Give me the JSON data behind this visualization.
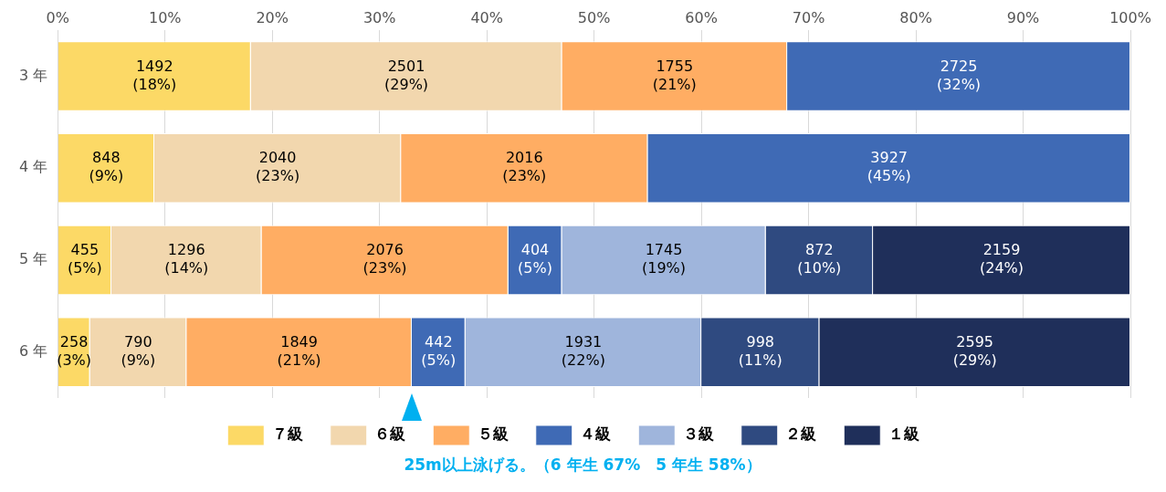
{
  "chart_data": {
    "type": "bar",
    "orientation": "horizontal",
    "stacked": true,
    "categories": [
      "3 年",
      "4 年",
      "5 年",
      "6 年"
    ],
    "series": [
      {
        "name": "７級",
        "color": "#fcd966",
        "values": [
          18,
          9,
          5,
          3
        ],
        "value_labels": [
          "1492\n(18%)",
          "848\n(9%)",
          "455\n(5%)",
          "258\n(3%)"
        ]
      },
      {
        "name": "６級",
        "color": "#f2d7ae",
        "values": [
          29,
          23,
          14,
          9
        ],
        "value_labels": [
          "2501\n(29%)",
          "2040\n(23%)",
          "1296\n(14%)",
          "790\n(9%)"
        ]
      },
      {
        "name": "５級",
        "color": "#ffad63",
        "values": [
          21,
          23,
          23,
          21
        ],
        "value_labels": [
          "1755\n(21%)",
          "2016\n(23%)",
          "2076\n(23%)",
          "1849\n(21%)"
        ]
      },
      {
        "name": "４級",
        "color": "#3f6ab5",
        "values": [
          32,
          45,
          5,
          5
        ],
        "value_labels": [
          "2725\n(32%)",
          "3927\n(45%)",
          "404\n(5%)",
          "442\n(5%)"
        ]
      },
      {
        "name": "３級",
        "color": "#9fb5dc",
        "values": [
          null,
          null,
          19,
          22
        ],
        "value_labels": [
          null,
          null,
          "1745\n(19%)",
          "1931\n(22%)"
        ]
      },
      {
        "name": "２級",
        "color": "#2f4a80",
        "values": [
          null,
          null,
          10,
          11
        ],
        "value_labels": [
          null,
          null,
          "872\n(10%)",
          "998\n(11%)"
        ]
      },
      {
        "name": "１級",
        "color": "#1f2f5a",
        "values": [
          null,
          null,
          24,
          29
        ],
        "value_labels": [
          null,
          null,
          "2159\n(24%)",
          "2595\n(29%)"
        ]
      }
    ],
    "xlim": [
      0,
      100
    ],
    "xticks": [
      {
        "value": 0,
        "label": "0%"
      },
      {
        "value": 10,
        "label": "10%"
      },
      {
        "value": 20,
        "label": "20%"
      },
      {
        "value": 30,
        "label": "30%"
      },
      {
        "value": 40,
        "label": "40%"
      },
      {
        "value": 50,
        "label": "50%"
      },
      {
        "value": 60,
        "label": "60%"
      },
      {
        "value": 70,
        "label": "70%"
      },
      {
        "value": 80,
        "label": "80%"
      },
      {
        "value": 90,
        "label": "90%"
      },
      {
        "value": 100,
        "label": "100%"
      }
    ],
    "grid": "x",
    "legend": "bottom",
    "annotations": [
      "25m以上泳げる。（6 年生 67%　5 年生 58%）"
    ]
  }
}
